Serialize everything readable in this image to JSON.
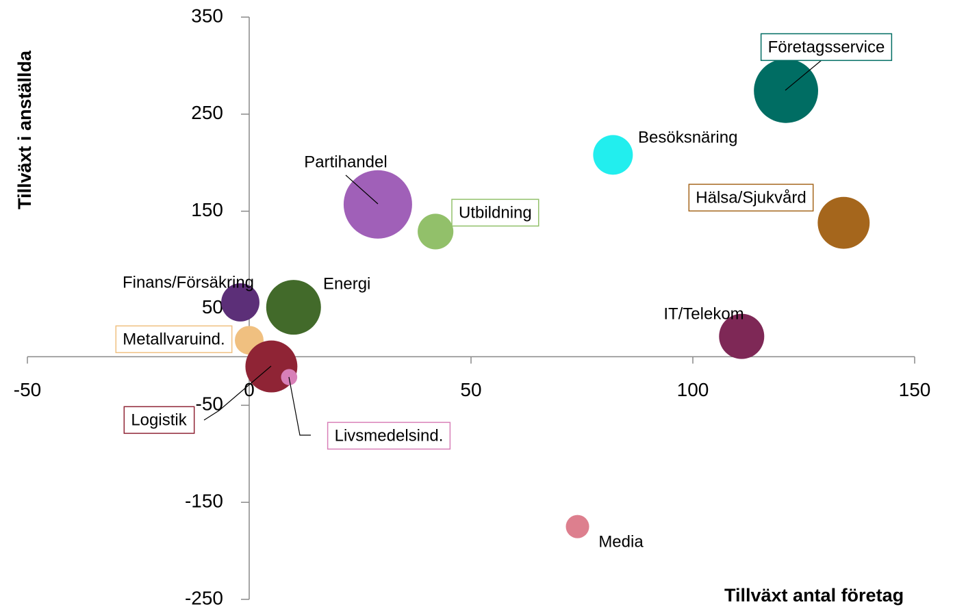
{
  "chart_data": {
    "type": "bubble",
    "xlabel": "Tillväxt antal företag",
    "ylabel": "Tillväxt i anställda",
    "xlim": [
      -50,
      150
    ],
    "xticks": [
      -50,
      0,
      50,
      100,
      150
    ],
    "ylim": [
      -250,
      350
    ],
    "yticks": [
      350,
      250,
      150,
      50,
      -50,
      -150,
      -250
    ],
    "points": [
      {
        "name": "Företagsservice",
        "x": 121,
        "y": 274,
        "size": 220,
        "color": "#006d63"
      },
      {
        "name": "Besöksnäring",
        "x": 82,
        "y": 208,
        "size": 84,
        "color": "#22eeee"
      },
      {
        "name": "Partihandel",
        "x": 29,
        "y": 157,
        "size": 250,
        "color": "#a060b8"
      },
      {
        "name": "Utbildning",
        "x": 42,
        "y": 129,
        "size": 68,
        "color": "#92c06a"
      },
      {
        "name": "Hälsa/Sjukvård",
        "x": 134,
        "y": 138,
        "size": 144,
        "color": "#a5661c"
      },
      {
        "name": "Finans/Försäkring",
        "x": -2,
        "y": 56,
        "size": 78,
        "color": "#5c2f78"
      },
      {
        "name": "Energi",
        "x": 10,
        "y": 51,
        "size": 160,
        "color": "#426a2a"
      },
      {
        "name": "Metallvaruind.",
        "x": 0,
        "y": 17,
        "size": 44,
        "color": "#f0c080"
      },
      {
        "name": "Logistik",
        "x": 5,
        "y": -10,
        "size": 144,
        "color": "#8f2435"
      },
      {
        "name": "Livsmedelsind.",
        "x": 9,
        "y": -21,
        "size": 14,
        "color": "#d880b8"
      },
      {
        "name": "IT/Telekom",
        "x": 111,
        "y": 21,
        "size": 109,
        "color": "#7e2856"
      },
      {
        "name": "Media",
        "x": 74,
        "y": -175,
        "size": 29,
        "color": "#dd7f8e"
      }
    ]
  }
}
